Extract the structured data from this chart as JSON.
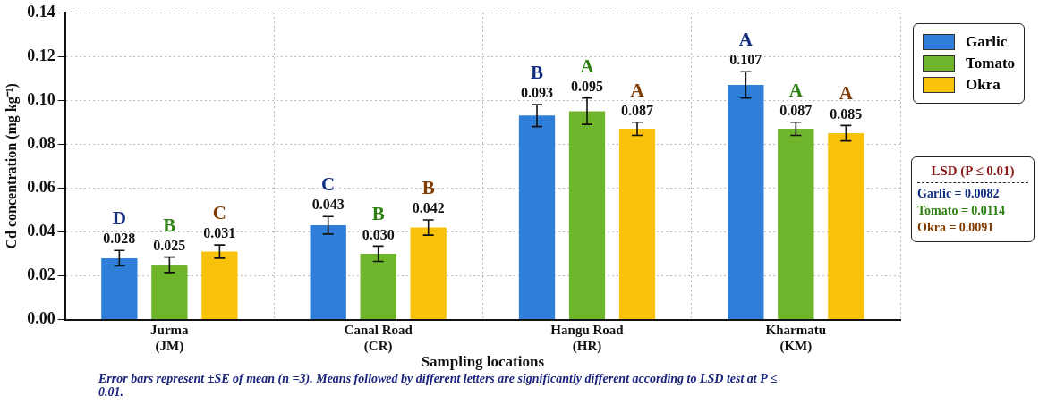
{
  "chart_data": {
    "type": "bar",
    "categories": [
      "Jurma\n(JM)",
      "Canal Road\n(CR)",
      "Hangu Road\n(HR)",
      "Kharmatu\n(KM)"
    ],
    "series": [
      {
        "name": "Garlic",
        "color": "#2f7fd8",
        "values": [
          0.028,
          0.043,
          0.093,
          0.107
        ],
        "errors": [
          0.0035,
          0.004,
          0.005,
          0.006
        ],
        "value_labels": [
          "0.028",
          "0.043",
          "0.093",
          "0.107"
        ]
      },
      {
        "name": "Tomato",
        "color": "#6fb52c",
        "values": [
          0.025,
          0.03,
          0.095,
          0.087
        ],
        "errors": [
          0.0035,
          0.0035,
          0.006,
          0.003
        ],
        "value_labels": [
          "0.025",
          "0.030",
          "0.095",
          "0.087"
        ]
      },
      {
        "name": "Okra",
        "color": "#f9c20a",
        "values": [
          0.031,
          0.042,
          0.087,
          0.085
        ],
        "errors": [
          0.003,
          0.0035,
          0.003,
          0.0035
        ],
        "value_labels": [
          "0.031",
          "0.042",
          "0.087",
          "0.085"
        ]
      }
    ],
    "xlabel": "Sampling locations",
    "ylabel": "Cd concentration (mg kg⁻¹)",
    "ylim": [
      0,
      0.14
    ],
    "yticks": [
      {
        "value": 0,
        "label": "0.00"
      },
      {
        "value": 0.02,
        "label": "0.02"
      },
      {
        "value": 0.04,
        "label": "0.04"
      },
      {
        "value": 0.06,
        "label": "0.06"
      },
      {
        "value": 0.08,
        "label": "0.08"
      },
      {
        "value": 0.1,
        "label": "0.10"
      },
      {
        "value": 0.12,
        "label": "0.12"
      },
      {
        "value": 0.14,
        "label": "0.14"
      }
    ],
    "grid": true,
    "legend": "top right",
    "annotations": [
      "D",
      "B",
      "C",
      "C",
      "B",
      "B",
      "B",
      "A",
      "A",
      "A",
      "A",
      "A",
      "LSD (P ≤ 0.01)",
      "Garlic = 0.0082",
      "Tomato = 0.0114",
      "Okra = 0.0091",
      "Error bars represent ±SE of mean (n =3). Means followed by different letters are significantly different according to LSD test at P ≤ 0.01."
    ]
  }
}
